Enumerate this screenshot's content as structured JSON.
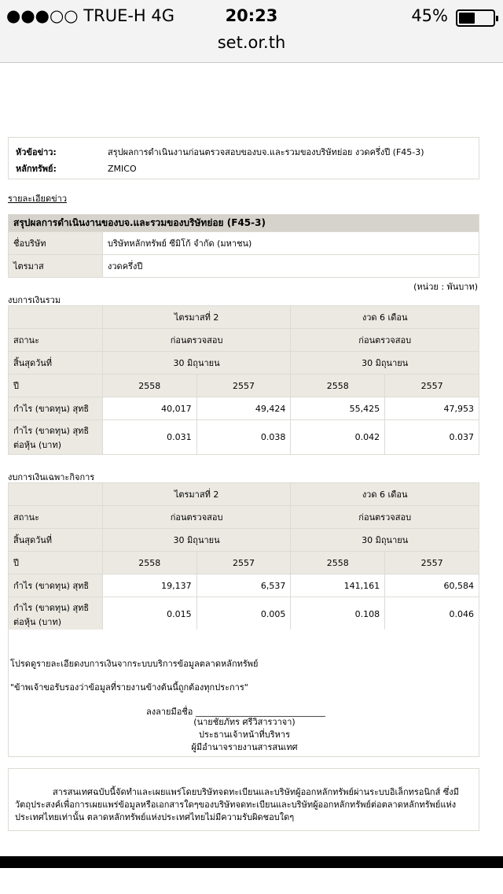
{
  "status_bar": {
    "carrier": "●●●○○ TRUE-H   4G",
    "time": "20:23",
    "battery": "45%",
    "battery_level": 0.45,
    "url": "set.or.th"
  },
  "header": {
    "subject_label": "หัวข้อข่าว:",
    "subject": "สรุปผลการดำเนินงานก่อนตรวจสอบของบจ.และรวมของบริษัทย่อย งวดครึ่งปี (F45-3)",
    "security_label": "หลักทรัพย์:",
    "security": "ZMICO"
  },
  "details_link": "รายละเอียดข่าว",
  "summary": {
    "title": "สรุปผลการดำเนินงานของบจ.และรวมของบริษัทย่อย (F45-3)",
    "company_label": "ชื่อบริษัท",
    "company": "บริษัทหลักทรัพย์ ซีมิโก้ จำกัด (มหาชน)",
    "period_label": "ไตรมาส",
    "period": "งวดครึ่งปี",
    "unit": "(หน่วย : พันบาท)"
  },
  "tables": [
    {
      "section": "งบการเงินรวม",
      "col_groups": [
        "ไตรมาสที่ 2",
        "งวด 6 เดือน"
      ],
      "rows": [
        {
          "label": "สถานะ",
          "cells": [
            "ก่อนตรวจสอบ",
            "ก่อนตรวจสอบ"
          ]
        },
        {
          "label": "สิ้นสุดวันที่",
          "cells": [
            "30 มิถุนายน",
            "30 มิถุนายน"
          ]
        },
        {
          "label": "ปี",
          "cells": [
            "2558",
            "2557",
            "2558",
            "2557"
          ]
        },
        {
          "label": "กำไร (ขาดทุน) สุทธิ",
          "cells": [
            "40,017",
            "49,424",
            "55,425",
            "47,953"
          ]
        },
        {
          "label": "กำไร (ขาดทุน) สุทธิต่อหุ้น (บาท)",
          "cells": [
            "0.031",
            "0.038",
            "0.042",
            "0.037"
          ]
        }
      ]
    },
    {
      "section": "งบการเงินเฉพาะกิจการ",
      "col_groups": [
        "ไตรมาสที่ 2",
        "งวด 6 เดือน"
      ],
      "rows": [
        {
          "label": "สถานะ",
          "cells": [
            "ก่อนตรวจสอบ",
            "ก่อนตรวจสอบ"
          ]
        },
        {
          "label": "สิ้นสุดวันที่",
          "cells": [
            "30 มิถุนายน",
            "30 มิถุนายน"
          ]
        },
        {
          "label": "ปี",
          "cells": [
            "2558",
            "2557",
            "2558",
            "2557"
          ]
        },
        {
          "label": "กำไร (ขาดทุน) สุทธิ",
          "cells": [
            "19,137",
            "6,537",
            "141,161",
            "60,584"
          ]
        },
        {
          "label": "กำไร (ขาดทุน) สุทธิต่อหุ้น (บาท)",
          "cells": [
            "0.015",
            "0.005",
            "0.108",
            "0.046"
          ]
        }
      ]
    }
  ],
  "footer": {
    "note": "โปรดดูรายละเอียดงบการเงินจากระบบบริการข้อมูลตลาดหลักทรัพย์",
    "certify": "\"ข้าพเจ้าขอรับรองว่าข้อมูลที่รายงานข้างต้นนี้ถูกต้องทุกประการ\"",
    "sign": "ลงลายมือชื่อ ______________________________",
    "name": "(นายชัยภัทร ศรีวิสารวาจา)",
    "position": "ประธานเจ้าหน้าที่บริหาร",
    "role": "ผู้มีอำนาจรายงานสารสนเทศ"
  },
  "disclaimer": "สารสนเทศฉบับนี้จัดทำและเผยแพร่โดยบริษัทจดทะเบียนและบริษัทผู้ออกหลักทรัพย์ผ่านระบบอิเล็กทรอนิกส์ ซึ่งมีวัตถุประสงค์เพื่อการเผยแพร่ข้อมูลหรือเอกสารใดๆของบริษัทจดทะเบียนและบริษัทผู้ออกหลักทรัพย์ต่อตลาดหลักทรัพย์แห่งประเทศไทยเท่านั้น ตลาดหลักทรัพย์แห่งประเทศไทยไม่มีความรับผิดชอบใดๆ"
}
